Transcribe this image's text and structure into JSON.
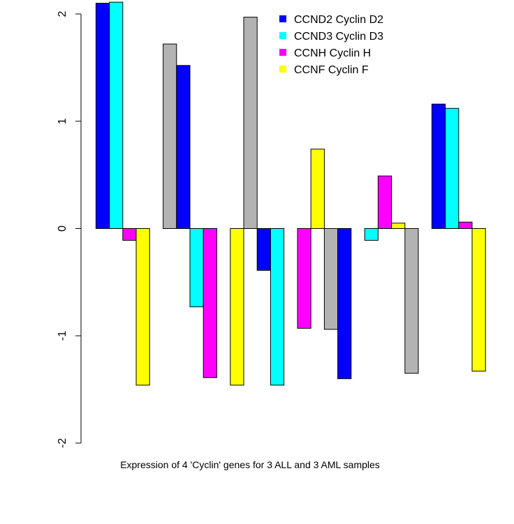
{
  "chart_data": {
    "type": "bar",
    "title": "",
    "xlabel": "Expression of 4 'Cyclin' genes for 3 ALL and 3 AML samples",
    "ylabel": "",
    "ylim": [
      -2,
      2
    ],
    "yticks": [
      "-2",
      "-1",
      "0",
      "1",
      "2"
    ],
    "grid": false,
    "legend_position": "top-right",
    "legend": [
      {
        "label": "CCND2 Cyclin D2",
        "color": "#0000FF"
      },
      {
        "label": "CCND3 Cyclin D3",
        "color": "#00FFFF"
      },
      {
        "label": "CCNH Cyclin H",
        "color": "#FF00FF"
      },
      {
        "label": "CCNF Cyclin F",
        "color": "#FFFF00"
      }
    ],
    "groups": [
      {
        "bars": [
          {
            "value": 2.1,
            "color": "#0000FF"
          },
          {
            "value": 2.11,
            "color": "#00FFFF"
          },
          {
            "value": -0.11,
            "color": "#FF00FF"
          },
          {
            "value": -1.46,
            "color": "#FFFF00"
          }
        ]
      },
      {
        "bars": [
          {
            "value": 1.72,
            "color": "#B3B3B3"
          },
          {
            "value": 1.52,
            "color": "#0000FF"
          },
          {
            "value": -0.73,
            "color": "#00FFFF"
          },
          {
            "value": -1.39,
            "color": "#FF00FF"
          }
        ]
      },
      {
        "bars": [
          {
            "value": -1.46,
            "color": "#FFFF00"
          },
          {
            "value": 1.97,
            "color": "#B3B3B3"
          },
          {
            "value": -0.39,
            "color": "#0000FF"
          },
          {
            "value": -1.46,
            "color": "#00FFFF"
          }
        ]
      },
      {
        "bars": [
          {
            "value": -0.93,
            "color": "#FF00FF"
          },
          {
            "value": 0.74,
            "color": "#FFFF00"
          },
          {
            "value": -0.94,
            "color": "#B3B3B3"
          },
          {
            "value": -1.4,
            "color": "#0000FF"
          }
        ]
      },
      {
        "bars": [
          {
            "value": -0.11,
            "color": "#00FFFF"
          },
          {
            "value": 0.49,
            "color": "#FF00FF"
          },
          {
            "value": 0.05,
            "color": "#FFFF00"
          },
          {
            "value": -1.35,
            "color": "#B3B3B3"
          }
        ]
      },
      {
        "bars": [
          {
            "value": 1.16,
            "color": "#0000FF"
          },
          {
            "value": 1.12,
            "color": "#00FFFF"
          },
          {
            "value": 0.06,
            "color": "#FF00FF"
          },
          {
            "value": -1.33,
            "color": "#FFFF00"
          }
        ]
      }
    ]
  }
}
